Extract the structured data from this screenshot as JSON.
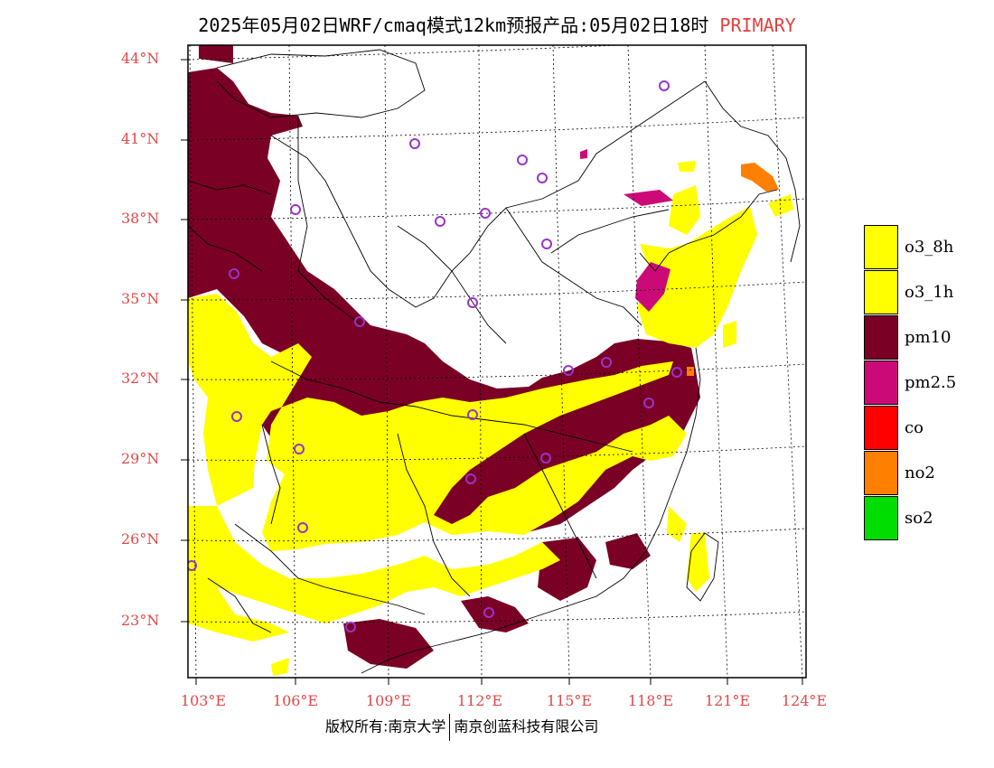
{
  "title": {
    "main": "2025年05月02日WRF/cmaq模式12km预报产品:05月02日18时",
    "tag": "PRIMARY"
  },
  "colors": {
    "o3_8h": "#ffff00",
    "o3_1h": "#ffff00",
    "pm10": "#7a0026",
    "pm2_5": "#cc0a77",
    "co": "#ff0000",
    "no2": "#ff7f00",
    "so2": "#00dd00",
    "labels": "#e04848",
    "city": "#9933cc"
  },
  "lat_labels": [
    "44°N",
    "41°N",
    "38°N",
    "35°N",
    "32°N",
    "29°N",
    "26°N",
    "23°N"
  ],
  "lon_labels": [
    "103°E",
    "106°E",
    "109°E",
    "112°E",
    "115°E",
    "118°E",
    "121°E",
    "124°E"
  ],
  "legend": [
    {
      "label": "o3_8h",
      "color": "#ffff00"
    },
    {
      "label": "o3_1h",
      "color": "#ffff00"
    },
    {
      "label": "pm10",
      "color": "#7a0026"
    },
    {
      "label": "pm2.5",
      "color": "#cc0a77"
    },
    {
      "label": "co",
      "color": "#ff0000"
    },
    {
      "label": "no2",
      "color": "#ff7f00"
    },
    {
      "label": "so2",
      "color": "#00dd00"
    }
  ],
  "footer": {
    "left": "版权所有:南京大学",
    "right": "南京创蓝科技有限公司"
  }
}
